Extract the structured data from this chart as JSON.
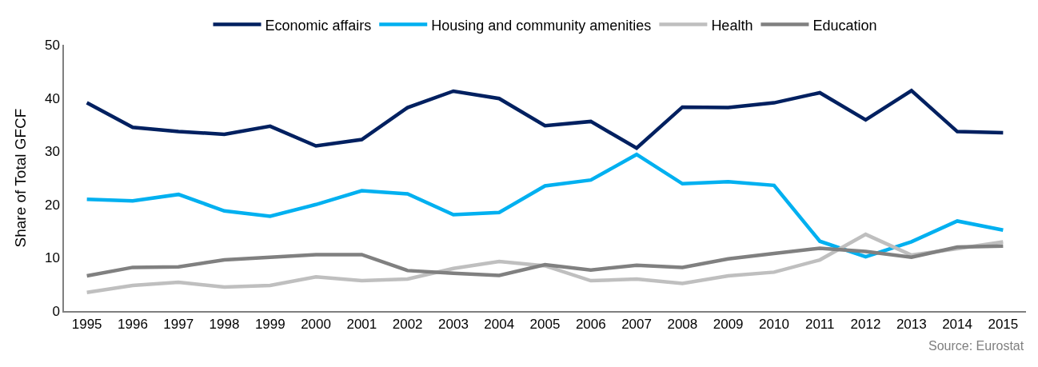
{
  "chart_data": {
    "type": "line",
    "ylabel": "Share of Total GFCF",
    "categories": [
      "1995",
      "1996",
      "1997",
      "1998",
      "1999",
      "2000",
      "2001",
      "2002",
      "2003",
      "2004",
      "2005",
      "2006",
      "2007",
      "2008",
      "2009",
      "2010",
      "2011",
      "2012",
      "2013",
      "2014",
      "2015"
    ],
    "series": [
      {
        "name": "Economic affairs",
        "color": "#002060",
        "values": [
          39.1,
          34.5,
          33.7,
          33.2,
          34.7,
          31.0,
          32.2,
          38.2,
          41.3,
          39.9,
          34.8,
          35.6,
          30.6,
          38.3,
          38.2,
          39.1,
          41.0,
          35.9,
          41.4,
          33.7,
          33.5
        ]
      },
      {
        "name": "Housing and community amenities",
        "color": "#00b0f0",
        "values": [
          21.0,
          20.7,
          21.9,
          18.8,
          17.8,
          20.0,
          22.6,
          22.0,
          18.1,
          18.5,
          23.5,
          24.6,
          29.4,
          23.9,
          24.3,
          23.6,
          13.1,
          10.2,
          13.0,
          16.9,
          15.2
        ]
      },
      {
        "name": "Health",
        "color": "#bfbfbf",
        "values": [
          3.5,
          4.8,
          5.4,
          4.5,
          4.8,
          6.4,
          5.7,
          6.0,
          8.0,
          9.3,
          8.5,
          5.7,
          6.0,
          5.2,
          6.6,
          7.3,
          9.6,
          14.4,
          10.5,
          11.7,
          13.0
        ]
      },
      {
        "name": "Education",
        "color": "#808080",
        "values": [
          6.6,
          8.2,
          8.3,
          9.6,
          10.1,
          10.6,
          10.6,
          7.6,
          7.1,
          6.7,
          8.7,
          7.7,
          8.6,
          8.2,
          9.8,
          10.8,
          11.8,
          11.2,
          10.1,
          12.0,
          12.2
        ]
      }
    ],
    "ylim": [
      0,
      50
    ],
    "yticks": [
      0,
      10,
      20,
      30,
      40,
      50
    ],
    "grid": false,
    "legend": "top",
    "marker": "none",
    "line_style": "solid",
    "annotations": [
      "Source: Eurostat"
    ]
  }
}
